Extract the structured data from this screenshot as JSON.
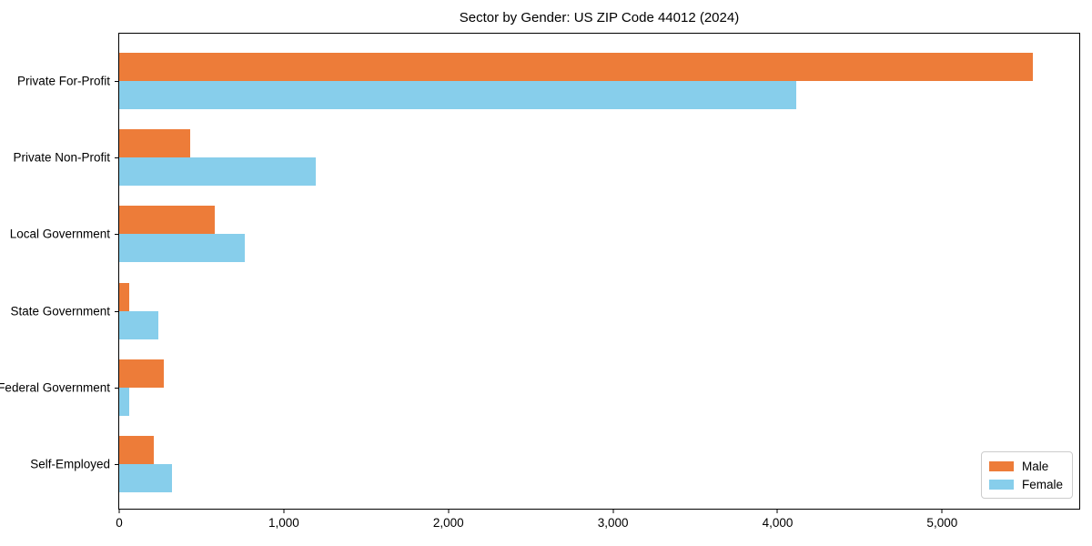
{
  "title": "Sector by Gender: US ZIP Code 44012 (2024)",
  "chart_data": {
    "type": "bar",
    "orientation": "horizontal",
    "title": "Sector by Gender: US ZIP Code 44012 (2024)",
    "categories": [
      "Private For-Profit",
      "Private Non-Profit",
      "Local Government",
      "State Government",
      "Federal Government",
      "Self-Employed"
    ],
    "series": [
      {
        "name": "Male",
        "color": "#ED7C39",
        "values": [
          5550,
          430,
          580,
          60,
          270,
          210
        ]
      },
      {
        "name": "Female",
        "color": "#87CEEB",
        "values": [
          4115,
          1195,
          765,
          240,
          60,
          320
        ]
      }
    ],
    "xlabel": "",
    "ylabel": "",
    "xlim": [
      0,
      5833
    ],
    "x_ticks": [
      0,
      1000,
      2000,
      3000,
      4000,
      5000
    ],
    "x_tick_labels": [
      "0",
      "1,000",
      "2,000",
      "3,000",
      "4,000",
      "5,000"
    ],
    "grid": false,
    "legend_position": "lower right"
  },
  "legend": {
    "items": [
      {
        "label": "Male",
        "color": "#ED7C39"
      },
      {
        "label": "Female",
        "color": "#87CEEB"
      }
    ]
  }
}
